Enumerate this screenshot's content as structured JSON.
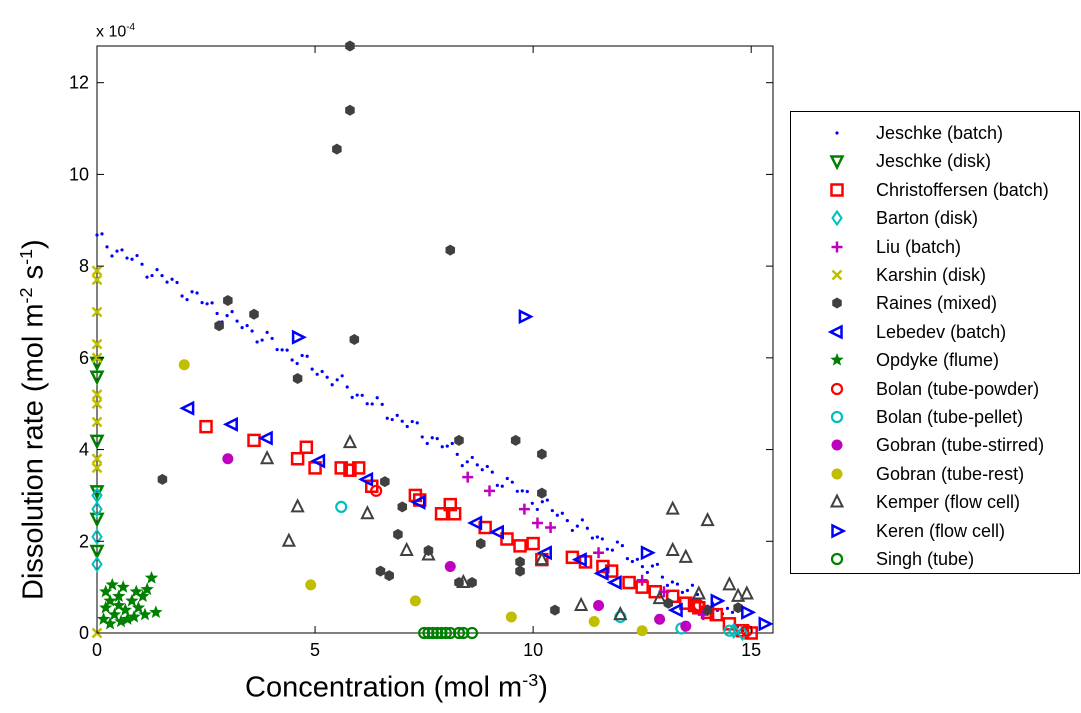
{
  "chart_data": {
    "type": "scatter",
    "x_axis": {
      "label_text": "Concentration (mol m",
      "label_exp": "-3",
      "label_close": ")",
      "range": [
        0,
        15.5
      ],
      "ticks": [
        0,
        5,
        10,
        15
      ]
    },
    "y_axis": {
      "label_text": "Dissolution rate (mol m",
      "label_exp1": "-2",
      "label_mid": " s",
      "label_exp2": "-1",
      "label_close": ")",
      "range": [
        0,
        12.8
      ],
      "ticks": [
        0,
        2,
        4,
        6,
        8,
        10,
        12
      ],
      "multiplier_base": "x 10",
      "multiplier_exp": "-4"
    },
    "grid": false,
    "legend_position": "right",
    "series": [
      {
        "name": "Jeschke (batch)",
        "marker": "dot",
        "color": "#0000ff",
        "trend": {
          "x0": 0,
          "y0": 8.6,
          "x1": 14.8,
          "y1": 0.2,
          "n": 130
        }
      },
      {
        "name": "Jeschke (disk)",
        "marker": "triangle-down",
        "color": "#008000",
        "points": [
          [
            0,
            5.9
          ],
          [
            0,
            5.6
          ],
          [
            0,
            4.2
          ],
          [
            0,
            3.1
          ],
          [
            0,
            2.5
          ],
          [
            0,
            1.8
          ]
        ]
      },
      {
        "name": "Christoffersen (batch)",
        "marker": "square",
        "color": "#ff0000",
        "points": [
          [
            2.5,
            4.5
          ],
          [
            3.6,
            4.2
          ],
          [
            4.6,
            3.8
          ],
          [
            4.8,
            4.05
          ],
          [
            5,
            3.6
          ],
          [
            5.6,
            3.6
          ],
          [
            5.8,
            3.55
          ],
          [
            6,
            3.6
          ],
          [
            6.3,
            3.2
          ],
          [
            7.3,
            3.0
          ],
          [
            7.4,
            2.9
          ],
          [
            7.9,
            2.6
          ],
          [
            8.1,
            2.8
          ],
          [
            8.2,
            2.6
          ],
          [
            8.9,
            2.3
          ],
          [
            9.4,
            2.05
          ],
          [
            9.7,
            1.9
          ],
          [
            10,
            1.95
          ],
          [
            10.2,
            1.6
          ],
          [
            10.9,
            1.65
          ],
          [
            11.2,
            1.55
          ],
          [
            11.6,
            1.45
          ],
          [
            11.8,
            1.35
          ],
          [
            12.2,
            1.1
          ],
          [
            12.5,
            1.0
          ],
          [
            12.8,
            0.9
          ],
          [
            13.2,
            0.8
          ],
          [
            13.5,
            0.65
          ],
          [
            13.7,
            0.6
          ],
          [
            13.8,
            0.55
          ],
          [
            14.0,
            0.45
          ],
          [
            14.2,
            0.4
          ],
          [
            14.5,
            0.2
          ],
          [
            14.8,
            0.05
          ],
          [
            15.0,
            0.0
          ]
        ]
      },
      {
        "name": "Barton (disk)",
        "marker": "diamond",
        "color": "#00bfbf",
        "points": [
          [
            0,
            3.0
          ],
          [
            0,
            2.7
          ],
          [
            0,
            2.1
          ],
          [
            0,
            1.5
          ],
          [
            14.8,
            0.0
          ],
          [
            14.6,
            0.05
          ]
        ]
      },
      {
        "name": "Liu (batch)",
        "marker": "plus",
        "color": "#bf00bf",
        "points": [
          [
            8.5,
            3.4
          ],
          [
            9,
            3.1
          ],
          [
            9.8,
            2.7
          ],
          [
            10.1,
            2.4
          ],
          [
            10.4,
            2.3
          ],
          [
            11.5,
            1.75
          ],
          [
            12.5,
            1.15
          ],
          [
            13.0,
            0.9
          ],
          [
            13.9,
            0.4
          ]
        ]
      },
      {
        "name": "Karshin (disk)",
        "marker": "x",
        "color": "#bfbf00",
        "points": [
          [
            0,
            7.9
          ],
          [
            0,
            7.7
          ],
          [
            0,
            7.0
          ],
          [
            0,
            6.3
          ],
          [
            0,
            6.0
          ],
          [
            0,
            5.2
          ],
          [
            0,
            5.0
          ],
          [
            0,
            4.6
          ],
          [
            0,
            3.8
          ],
          [
            0,
            3.6
          ],
          [
            0,
            0.0
          ]
        ]
      },
      {
        "name": "Raines (mixed)",
        "marker": "hex",
        "color": "#404040",
        "points": [
          [
            5.8,
            12.8
          ],
          [
            5.8,
            11.4
          ],
          [
            5.5,
            10.55
          ],
          [
            8.1,
            8.35
          ],
          [
            3.0,
            7.25
          ],
          [
            2.8,
            6.7
          ],
          [
            3.6,
            6.95
          ],
          [
            5.9,
            6.4
          ],
          [
            4.6,
            5.55
          ],
          [
            1.5,
            3.35
          ],
          [
            8.3,
            4.2
          ],
          [
            9.6,
            4.2
          ],
          [
            10.2,
            3.9
          ],
          [
            6.6,
            3.3
          ],
          [
            10.2,
            3.05
          ],
          [
            7.0,
            2.75
          ],
          [
            8.8,
            1.95
          ],
          [
            9.7,
            1.55
          ],
          [
            6.9,
            2.15
          ],
          [
            7.6,
            1.8
          ],
          [
            9.7,
            1.35
          ],
          [
            6.5,
            1.35
          ],
          [
            6.7,
            1.25
          ],
          [
            8.3,
            1.1
          ],
          [
            8.6,
            1.1
          ],
          [
            10.5,
            0.5
          ],
          [
            13.1,
            0.65
          ],
          [
            14.0,
            0.5
          ],
          [
            14.7,
            0.55
          ]
        ]
      },
      {
        "name": "Lebedev (batch)",
        "marker": "triangle-left",
        "color": "#0000ff",
        "points": [
          [
            2.1,
            4.9
          ],
          [
            3.1,
            4.55
          ],
          [
            3.9,
            4.25
          ],
          [
            5.1,
            3.75
          ],
          [
            6.2,
            3.35
          ],
          [
            7.4,
            2.85
          ],
          [
            8.7,
            2.4
          ],
          [
            9.2,
            2.2
          ],
          [
            10.3,
            1.75
          ],
          [
            11.1,
            1.6
          ],
          [
            11.6,
            1.3
          ],
          [
            11.9,
            1.1
          ],
          [
            13.3,
            0.5
          ]
        ]
      },
      {
        "name": "Opdyke (flume)",
        "marker": "star",
        "color": "#008000",
        "points": [
          [
            0.2,
            0.9
          ],
          [
            0.3,
            0.7
          ],
          [
            0.35,
            1.05
          ],
          [
            0.4,
            0.4
          ],
          [
            0.5,
            0.6
          ],
          [
            0.5,
            0.8
          ],
          [
            0.6,
            1.0
          ],
          [
            0.65,
            0.5
          ],
          [
            0.7,
            0.3
          ],
          [
            0.8,
            0.7
          ],
          [
            0.9,
            0.9
          ],
          [
            0.95,
            0.55
          ],
          [
            1.05,
            0.8
          ],
          [
            1.1,
            0.4
          ],
          [
            1.15,
            0.95
          ],
          [
            1.25,
            1.2
          ],
          [
            1.35,
            0.45
          ],
          [
            0.15,
            0.3
          ],
          [
            0.3,
            0.2
          ],
          [
            0.55,
            0.25
          ],
          [
            0.2,
            0.55
          ],
          [
            0.85,
            0.35
          ]
        ]
      },
      {
        "name": "Bolan (tube-powder)",
        "marker": "circle",
        "color": "#ff0000",
        "points": [
          [
            6.4,
            3.1
          ],
          [
            13.8,
            0.6
          ],
          [
            14.9,
            0.05
          ]
        ]
      },
      {
        "name": "Bolan (tube-pellet)",
        "marker": "circle",
        "color": "#00bfbf",
        "points": [
          [
            5.6,
            2.75
          ],
          [
            12.0,
            0.35
          ],
          [
            13.4,
            0.1
          ],
          [
            14.5,
            0.05
          ]
        ]
      },
      {
        "name": "Gobran (tube-stirred)",
        "marker": "filled-circle",
        "color": "#bf00bf",
        "points": [
          [
            3.0,
            3.8
          ],
          [
            8.1,
            1.45
          ],
          [
            11.5,
            0.6
          ],
          [
            12.9,
            0.3
          ],
          [
            13.5,
            0.15
          ]
        ]
      },
      {
        "name": "Gobran (tube-rest)",
        "marker": "filled-circle",
        "color": "#bfbf00",
        "points": [
          [
            2.0,
            5.85
          ],
          [
            4.9,
            1.05
          ],
          [
            7.3,
            0.7
          ],
          [
            9.5,
            0.35
          ],
          [
            11.4,
            0.25
          ],
          [
            12.5,
            0.05
          ]
        ]
      },
      {
        "name": "Kemper (flow cell)",
        "marker": "triangle-up",
        "color": "#404040",
        "points": [
          [
            5.8,
            4.15
          ],
          [
            3.9,
            3.8
          ],
          [
            4.6,
            2.75
          ],
          [
            4.4,
            2.0
          ],
          [
            6.2,
            2.6
          ],
          [
            7.1,
            1.8
          ],
          [
            7.6,
            1.7
          ],
          [
            8.4,
            1.1
          ],
          [
            10.2,
            1.6
          ],
          [
            11.1,
            0.6
          ],
          [
            12.0,
            0.4
          ],
          [
            13.2,
            2.7
          ],
          [
            13.2,
            1.8
          ],
          [
            13.5,
            1.65
          ],
          [
            14.0,
            2.45
          ],
          [
            13.8,
            0.85
          ],
          [
            14.5,
            1.05
          ],
          [
            14.7,
            0.8
          ],
          [
            14.9,
            0.85
          ],
          [
            12.9,
            0.75
          ]
        ]
      },
      {
        "name": "Keren (flow cell)",
        "marker": "triangle-right",
        "color": "#0000ff",
        "points": [
          [
            9.8,
            6.9
          ],
          [
            4.6,
            6.45
          ],
          [
            12.6,
            1.75
          ],
          [
            14.2,
            0.7
          ],
          [
            14.9,
            0.45
          ],
          [
            15.3,
            0.2
          ]
        ]
      },
      {
        "name": "Singh (tube)",
        "marker": "circle",
        "color": "#008000",
        "points": [
          [
            7.5,
            0
          ],
          [
            7.6,
            0
          ],
          [
            7.7,
            0
          ],
          [
            7.8,
            0
          ],
          [
            7.9,
            0
          ],
          [
            8.0,
            0
          ],
          [
            8.1,
            0
          ],
          [
            8.3,
            0
          ],
          [
            8.4,
            0
          ],
          [
            8.6,
            0
          ]
        ]
      }
    ]
  }
}
